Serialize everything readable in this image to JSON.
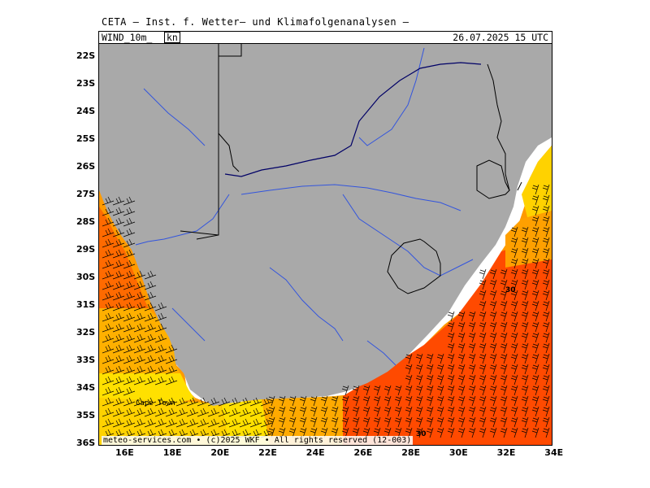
{
  "title": "CETA — Inst. f. Wetter— und Klimafolgenanalysen —",
  "panel": {
    "variable": "WIND_10m_",
    "unit": "kn",
    "datetime": "26.07.2025 15 UTC"
  },
  "credit": "meteo-services.com • (c)2025 WKF • All rights reserved (12-003)",
  "map": {
    "lon_range": [
      15,
      34
    ],
    "lat_range": [
      -36,
      -21.6
    ],
    "lat_ticks": [
      "22S",
      "23S",
      "24S",
      "25S",
      "26S",
      "27S",
      "28S",
      "29S",
      "30S",
      "31S",
      "32S",
      "33S",
      "34S",
      "35S",
      "36S"
    ],
    "lon_ticks": [
      "16E",
      "18E",
      "20E",
      "22E",
      "24E",
      "26E",
      "28E",
      "30E",
      "32E",
      "34E"
    ],
    "contour_labels": [
      "30",
      "30"
    ],
    "place_label": "Cape Town",
    "colors": {
      "land": "#a9a9a9",
      "sea": "#ffffff",
      "wind_low": "#ffe000",
      "wind_mid": "#ff9a00",
      "wind_high": "#ff4a00",
      "rivers": "#3355dd",
      "coast_north": "#000066",
      "borders": "#000000"
    }
  }
}
